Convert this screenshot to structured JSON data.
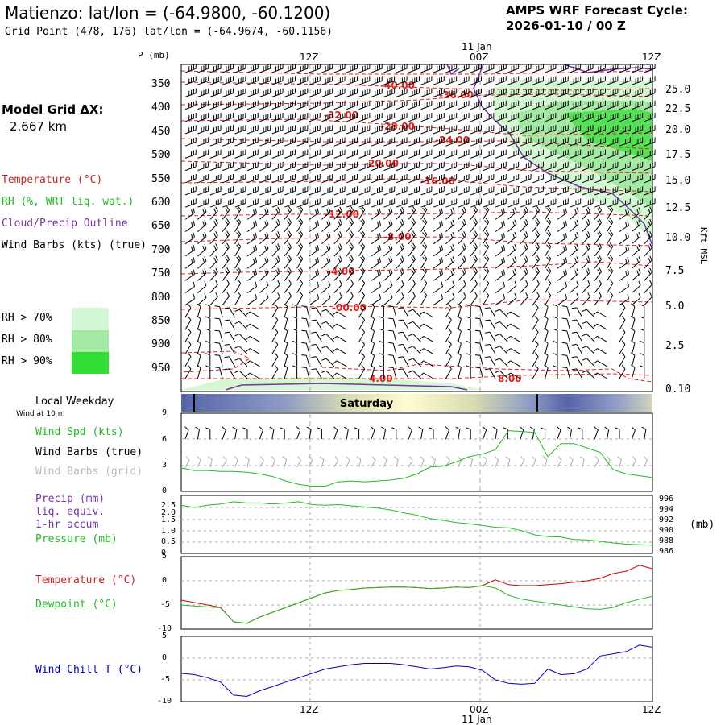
{
  "header": {
    "title": "Matienzo:  lat/lon = (-64.9800, -60.1200)",
    "grid_point": "Grid Point (478, 176) lat/lon = (-64.9674, -60.1156)",
    "forecast_cycle_label": "AMPS WRF Forecast Cycle:",
    "forecast_cycle_value": "2026-01-10 / 00  Z",
    "model_grid_label": "Model Grid ΔX:",
    "model_grid_value": "2.667 km"
  },
  "time_axis": {
    "top_ticks": [
      "12Z",
      "00Z",
      "12Z"
    ],
    "bottom_ticks": [
      "12Z",
      "00Z",
      "12Z"
    ],
    "date_label": "11 Jan"
  },
  "legend": {
    "temperature": "Temperature (°C)",
    "rh": "RH (%, WRT liq. wat.)",
    "cloud": "Cloud/Precip Outline",
    "wind": "Wind Barbs (kts) (true)",
    "rh70": "RH > 70%",
    "rh80": "RH > 80%",
    "rh90": "RH > 90%",
    "colors": {
      "rh70": "#d4f7d4",
      "rh80": "#a3e8a3",
      "rh90": "#33dd33",
      "temperature": "#dd2222",
      "cloud": "#7733aa"
    }
  },
  "cross_section": {
    "pressure_label": "P (mb)",
    "pressure_ticks": [
      "350",
      "400",
      "450",
      "500",
      "550",
      "600",
      "650",
      "700",
      "750",
      "800",
      "850",
      "900",
      "950"
    ],
    "height_label": "Kft MSL",
    "height_ticks": [
      "25.0",
      "22.5",
      "20.0",
      "17.5",
      "15.0",
      "12.5",
      "10.0",
      "7.5",
      "5.0",
      "2.5",
      "0.10"
    ],
    "temp_contour_labels": [
      "-40.00",
      "-36.00",
      "-32.00",
      "-28.00",
      "-24.00",
      "-20.00",
      "-16.00",
      "-12.00",
      "-8.00",
      "-4.00",
      "-00.00",
      "4.00",
      "8.00"
    ]
  },
  "weekday_bar": {
    "label": "Local Weekday",
    "sublabel": "Wind at 10 m",
    "day": "Saturday"
  },
  "panel_wind": {
    "labels": {
      "speed": "Wind Spd (kts)",
      "barbs_true": "Wind Barbs (true)",
      "barbs_grid": "Wind Barbs (grid)"
    },
    "y_ticks": [
      "9",
      "6",
      "3",
      "0"
    ]
  },
  "panel_precip": {
    "labels": {
      "precip": "Precip (mm)",
      "liq": "liq. equiv.",
      "accum": "1-hr accum",
      "pressure": "Pressure (mb)",
      "unit": "(mb)"
    },
    "left_ticks": [
      "2.5",
      "2.0",
      "1.5",
      "1.0",
      "0.5",
      "0"
    ],
    "right_ticks": [
      "996",
      "994",
      "992",
      "990",
      "988",
      "986"
    ]
  },
  "panel_temp": {
    "labels": {
      "temperature": "Temperature (°C)",
      "dewpoint": "Dewpoint (°C)"
    },
    "y_ticks": [
      "5",
      "0",
      "-5",
      "-10"
    ]
  },
  "panel_chill": {
    "labels": {
      "windchill": "Wind Chill T (°C)"
    },
    "y_ticks": [
      "5",
      "0",
      "-5",
      "-10"
    ]
  },
  "chart_data": [
    {
      "type": "line",
      "title": "Wind Spd (kts)",
      "x_hours": [
        0,
        1,
        2,
        3,
        4,
        5,
        6,
        7,
        8,
        9,
        10,
        11,
        12,
        13,
        14,
        15,
        16,
        17,
        18,
        19,
        20,
        21,
        22,
        23,
        24,
        25,
        26,
        27,
        28,
        29,
        30,
        31,
        32,
        33,
        34,
        35,
        36
      ],
      "series": [
        {
          "name": "Wind Spd (kts)",
          "values": [
            2.7,
            2.4,
            2.4,
            2.3,
            2.3,
            2.2,
            2.0,
            1.7,
            1.2,
            0.8,
            0.6,
            0.6,
            1.1,
            1.2,
            1.1,
            1.2,
            1.3,
            1.5,
            2.0,
            2.8,
            2.9,
            3.4,
            4.0,
            4.3,
            4.8,
            7.0,
            6.9,
            6.8,
            4.0,
            5.5,
            5.5,
            5.0,
            4.5,
            2.5,
            2.0,
            1.8,
            1.6
          ]
        }
      ],
      "ylim": [
        0,
        9
      ]
    },
    {
      "type": "line",
      "title": "Pressure (mb)",
      "x_hours": [
        0,
        1,
        2,
        3,
        4,
        5,
        6,
        7,
        8,
        9,
        10,
        11,
        12,
        13,
        14,
        15,
        16,
        17,
        18,
        19,
        20,
        21,
        22,
        23,
        24,
        25,
        26,
        27,
        28,
        29,
        30,
        31,
        32,
        33,
        34,
        35,
        36
      ],
      "series": [
        {
          "name": "Pressure (mb)",
          "values": [
            994.3,
            993.9,
            994.3,
            994.5,
            994.9,
            994.7,
            994.7,
            994.5,
            994.7,
            994.9,
            994.4,
            994.3,
            994.4,
            994.2,
            994.0,
            993.8,
            993.5,
            993.0,
            992.6,
            992.0,
            991.7,
            991.3,
            991.1,
            990.8,
            990.5,
            990.4,
            989.9,
            989.2,
            988.9,
            988.8,
            988.4,
            988.3,
            988.1,
            987.8,
            987.6,
            987.5,
            987.4
          ]
        }
      ],
      "ylim": [
        986,
        996
      ]
    },
    {
      "type": "line",
      "title": "Temperature / Dewpoint (°C)",
      "x_hours": [
        0,
        1,
        2,
        3,
        4,
        5,
        6,
        7,
        8,
        9,
        10,
        11,
        12,
        13,
        14,
        15,
        16,
        17,
        18,
        19,
        20,
        21,
        22,
        23,
        24,
        25,
        26,
        27,
        28,
        29,
        30,
        31,
        32,
        33,
        34,
        35,
        36
      ],
      "series": [
        {
          "name": "Temperature (°C)",
          "values": [
            -4.0,
            -4.5,
            -5.0,
            -5.5,
            -8.5,
            -8.8,
            -7.5,
            -6.5,
            -5.5,
            -4.5,
            -3.5,
            -2.5,
            -2.0,
            -1.8,
            -1.5,
            -1.4,
            -1.3,
            -1.3,
            -1.4,
            -1.6,
            -1.5,
            -1.3,
            -1.4,
            -1.0,
            0.2,
            -0.8,
            -1.0,
            -1.0,
            -0.8,
            -0.6,
            -0.3,
            0.0,
            0.5,
            1.5,
            2.0,
            3.2,
            2.5
          ]
        },
        {
          "name": "Dewpoint (°C)",
          "values": [
            -5.0,
            -5.2,
            -5.4,
            -5.6,
            -8.5,
            -8.8,
            -7.5,
            -6.5,
            -5.5,
            -4.5,
            -3.5,
            -2.5,
            -2.0,
            -1.8,
            -1.5,
            -1.4,
            -1.3,
            -1.3,
            -1.4,
            -1.6,
            -1.5,
            -1.3,
            -1.4,
            -1.0,
            -1.5,
            -3.0,
            -3.8,
            -4.2,
            -4.6,
            -5.0,
            -5.4,
            -5.8,
            -5.9,
            -5.5,
            -4.5,
            -3.8,
            -3.2
          ]
        }
      ],
      "ylim": [
        -10,
        5
      ]
    },
    {
      "type": "line",
      "title": "Wind Chill T (°C)",
      "x_hours": [
        0,
        1,
        2,
        3,
        4,
        5,
        6,
        7,
        8,
        9,
        10,
        11,
        12,
        13,
        14,
        15,
        16,
        17,
        18,
        19,
        20,
        21,
        22,
        23,
        24,
        25,
        26,
        27,
        28,
        29,
        30,
        31,
        32,
        33,
        34,
        35,
        36
      ],
      "series": [
        {
          "name": "Wind Chill T (°C)",
          "values": [
            -3.5,
            -3.8,
            -4.5,
            -5.5,
            -8.5,
            -8.8,
            -7.5,
            -6.5,
            -5.5,
            -4.5,
            -3.5,
            -2.5,
            -2.0,
            -1.5,
            -1.2,
            -1.2,
            -1.2,
            -1.5,
            -2.0,
            -2.5,
            -2.2,
            -1.8,
            -2.0,
            -2.8,
            -5.0,
            -5.8,
            -6.0,
            -5.8,
            -2.5,
            -3.8,
            -3.6,
            -2.5,
            0.5,
            1.0,
            1.5,
            3.0,
            2.5
          ]
        }
      ],
      "ylim": [
        -10,
        5
      ]
    }
  ]
}
